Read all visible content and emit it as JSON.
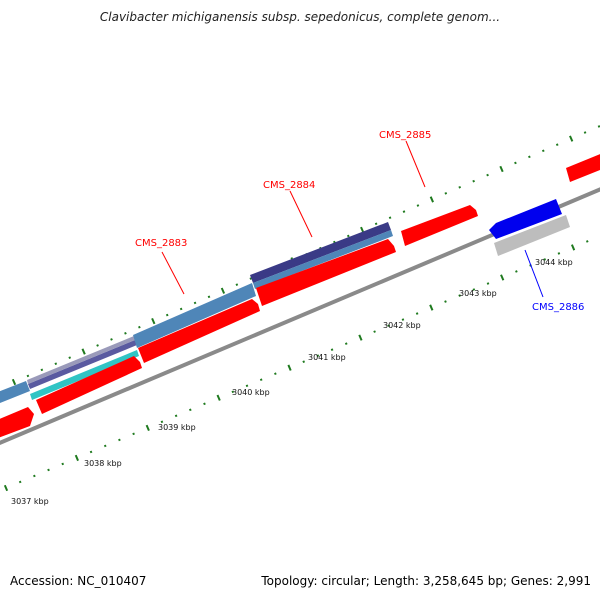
{
  "title": "Clavibacter michiganensis subsp. sepedonicus, complete genom...",
  "footer": {
    "accession": "Accession: NC_010407",
    "summary": "Topology: circular; Length: 3,258,645 bp; Genes: 2,991"
  },
  "colors": {
    "forward_cds": "#ff0000",
    "reverse_cds": "#0000ee",
    "pseudo": "#b8b8b8",
    "backbone": "#8a8a8a",
    "tick": "#1f7a1f",
    "label_forward": "#ff0000",
    "label_reverse": "#0000ff",
    "track_steel": "#4f86b8",
    "track_navy": "#3a3a86",
    "track_cyan": "#30c4c4"
  },
  "kbp_marks": [
    "3037 kbp",
    "3038 kbp",
    "3039 kbp",
    "3040 kbp",
    "3041 kbp",
    "3042 kbp",
    "3043 kbp",
    "3044 kbp"
  ],
  "genes": [
    {
      "label": "CMS_2883",
      "strand": "forward"
    },
    {
      "label": "CMS_2884",
      "strand": "forward"
    },
    {
      "label": "CMS_2885",
      "strand": "forward"
    },
    {
      "label": "CMS_2886",
      "strand": "reverse"
    }
  ]
}
